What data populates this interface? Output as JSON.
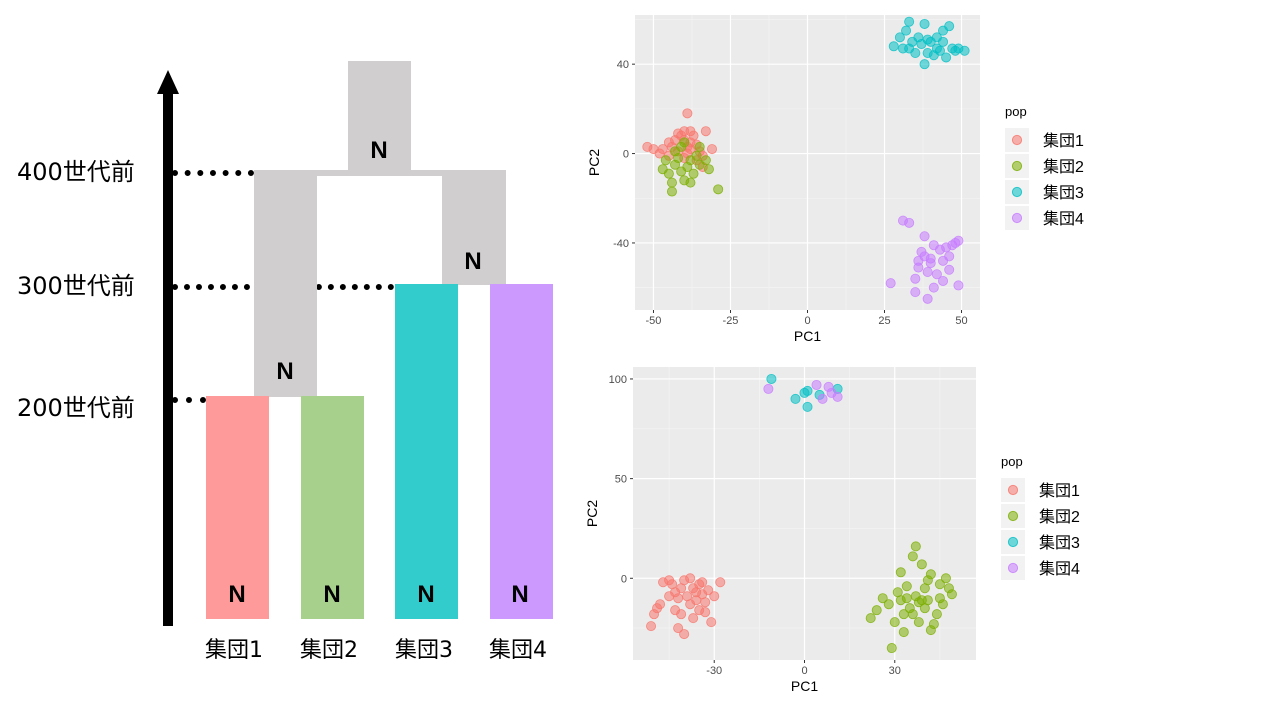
{
  "tree": {
    "generations": [
      "400世代前",
      "300世代前",
      "200世代前"
    ],
    "populations": [
      "集団1",
      "集団2",
      "集団3",
      "集団4"
    ],
    "node_label": "N",
    "colors": {
      "pop1": "#fe9a9a",
      "pop2": "#a8d08d",
      "pop3": "#33cccc",
      "pop4": "#cc99ff",
      "ancestor": "#d0cece"
    }
  },
  "chart_data": [
    {
      "type": "scatter",
      "xlabel": "PC1",
      "ylabel": "PC2",
      "xticks": [
        -50,
        -25,
        0,
        25,
        50
      ],
      "yticks": [
        40,
        0,
        -40
      ],
      "xlim": [
        -56,
        56
      ],
      "ylim": [
        -70,
        62
      ],
      "legend_title": "pop",
      "legend_position": "right",
      "series": [
        {
          "name": "集団1",
          "color": "#f8766d",
          "points": [
            [
              -52,
              3
            ],
            [
              -50,
              2
            ],
            [
              -47,
              2
            ],
            [
              -45,
              5
            ],
            [
              -44,
              3
            ],
            [
              -43,
              6
            ],
            [
              -42,
              9
            ],
            [
              -41,
              8
            ],
            [
              -40,
              10
            ],
            [
              -40,
              6
            ],
            [
              -39,
              3
            ],
            [
              -39,
              0
            ],
            [
              -38,
              2
            ],
            [
              -38,
              5
            ],
            [
              -37,
              8
            ],
            [
              -36,
              4
            ],
            [
              -35,
              1
            ],
            [
              -34,
              -1
            ],
            [
              -33,
              10
            ],
            [
              -31,
              2
            ],
            [
              -39,
              18
            ],
            [
              -40,
              -2
            ],
            [
              -36,
              -3
            ],
            [
              -34,
              -6
            ],
            [
              -42,
              1
            ],
            [
              -45,
              -1
            ],
            [
              -48,
              0
            ],
            [
              -38,
              10
            ]
          ]
        },
        {
          "name": "集団2",
          "color": "#7cae00",
          "points": [
            [
              -47,
              -7
            ],
            [
              -46,
              -3
            ],
            [
              -45,
              -9
            ],
            [
              -44,
              -13
            ],
            [
              -44,
              -17
            ],
            [
              -43,
              -5
            ],
            [
              -42,
              -2
            ],
            [
              -41,
              -8
            ],
            [
              -40,
              -12
            ],
            [
              -39,
              -6
            ],
            [
              -38,
              -13
            ],
            [
              -37,
              -9
            ],
            [
              -36,
              -1
            ],
            [
              -35,
              3
            ],
            [
              -35,
              -5
            ],
            [
              -33,
              -3
            ],
            [
              -32,
              -7
            ],
            [
              -29,
              -16
            ],
            [
              -43,
              1
            ],
            [
              -40,
              5
            ],
            [
              -38,
              -3
            ],
            [
              -41,
              3
            ]
          ]
        },
        {
          "name": "集団3",
          "color": "#00bfc4",
          "points": [
            [
              28,
              48
            ],
            [
              30,
              52
            ],
            [
              31,
              47
            ],
            [
              32,
              55
            ],
            [
              33,
              59
            ],
            [
              34,
              50
            ],
            [
              35,
              45
            ],
            [
              36,
              52
            ],
            [
              37,
              49
            ],
            [
              38,
              58
            ],
            [
              38,
              40
            ],
            [
              39,
              45
            ],
            [
              40,
              50
            ],
            [
              41,
              44
            ],
            [
              42,
              47
            ],
            [
              43,
              46
            ],
            [
              44,
              55
            ],
            [
              44,
              50
            ],
            [
              45,
              43
            ],
            [
              46,
              57
            ],
            [
              47,
              47
            ],
            [
              48,
              46
            ],
            [
              49,
              47
            ],
            [
              51,
              46
            ],
            [
              39,
              51
            ],
            [
              33,
              47
            ],
            [
              42,
              52
            ]
          ]
        },
        {
          "name": "集団4",
          "color": "#c77cff",
          "points": [
            [
              27,
              -58
            ],
            [
              31,
              -30
            ],
            [
              33,
              -31
            ],
            [
              35,
              -56
            ],
            [
              35,
              -62
            ],
            [
              36,
              -51
            ],
            [
              37,
              -44
            ],
            [
              38,
              -46
            ],
            [
              38,
              -37
            ],
            [
              39,
              -53
            ],
            [
              39,
              -65
            ],
            [
              40,
              -47
            ],
            [
              41,
              -41
            ],
            [
              41,
              -60
            ],
            [
              42,
              -54
            ],
            [
              43,
              -43
            ],
            [
              44,
              -48
            ],
            [
              44,
              -57
            ],
            [
              45,
              -42
            ],
            [
              46,
              -46
            ],
            [
              46,
              -52
            ],
            [
              47,
              -41
            ],
            [
              48,
              -40
            ],
            [
              49,
              -39
            ],
            [
              49,
              -59
            ],
            [
              40,
              -49
            ],
            [
              36,
              -48
            ]
          ]
        }
      ]
    },
    {
      "type": "scatter",
      "xlabel": "PC1",
      "ylabel": "PC2",
      "xticks": [
        -30,
        0,
        30
      ],
      "yticks": [
        100,
        50,
        0
      ],
      "xlim": [
        -57,
        57
      ],
      "ylim": [
        -41,
        106
      ],
      "legend_title": "pop",
      "legend_position": "right",
      "series": [
        {
          "name": "集団1",
          "color": "#f8766d",
          "points": [
            [
              -51,
              -24
            ],
            [
              -50,
              -18
            ],
            [
              -49,
              -15
            ],
            [
              -48,
              -13
            ],
            [
              -47,
              -2
            ],
            [
              -45,
              -1
            ],
            [
              -44,
              -3
            ],
            [
              -43,
              -7
            ],
            [
              -43,
              -16
            ],
            [
              -42,
              -10
            ],
            [
              -42,
              -25
            ],
            [
              -41,
              -5
            ],
            [
              -41,
              -18
            ],
            [
              -40,
              -28
            ],
            [
              -40,
              -1
            ],
            [
              -39,
              -9
            ],
            [
              -38,
              -13
            ],
            [
              -38,
              0
            ],
            [
              -37,
              -5
            ],
            [
              -37,
              -20
            ],
            [
              -36,
              -11
            ],
            [
              -35,
              -3
            ],
            [
              -35,
              -16
            ],
            [
              -34,
              -8
            ],
            [
              -34,
              -2
            ],
            [
              -33,
              -12
            ],
            [
              -32,
              -6
            ],
            [
              -31,
              -22
            ],
            [
              -30,
              -9
            ],
            [
              -28,
              -2
            ],
            [
              -45,
              -9
            ],
            [
              -36,
              -7
            ],
            [
              -33,
              -17
            ]
          ]
        },
        {
          "name": "集団2",
          "color": "#7cae00",
          "points": [
            [
              22,
              -20
            ],
            [
              24,
              -16
            ],
            [
              26,
              -10
            ],
            [
              28,
              -13
            ],
            [
              29,
              -35
            ],
            [
              30,
              -22
            ],
            [
              31,
              -7
            ],
            [
              32,
              -11
            ],
            [
              32,
              3
            ],
            [
              33,
              -27
            ],
            [
              34,
              -10
            ],
            [
              34,
              -4
            ],
            [
              35,
              -15
            ],
            [
              36,
              -18
            ],
            [
              36,
              11
            ],
            [
              37,
              -9
            ],
            [
              37,
              16
            ],
            [
              38,
              -12
            ],
            [
              38,
              -22
            ],
            [
              39,
              -11
            ],
            [
              40,
              -15
            ],
            [
              40,
              -5
            ],
            [
              41,
              -1
            ],
            [
              41,
              -11
            ],
            [
              42,
              2
            ],
            [
              42,
              -26
            ],
            [
              43,
              -23
            ],
            [
              44,
              -18
            ],
            [
              45,
              -3
            ],
            [
              46,
              -13
            ],
            [
              47,
              0
            ],
            [
              48,
              -5
            ],
            [
              49,
              -8
            ],
            [
              39,
              7
            ],
            [
              33,
              -18
            ],
            [
              45,
              -10
            ]
          ]
        },
        {
          "name": "集団3",
          "color": "#00bfc4",
          "points": [
            [
              -11,
              100
            ],
            [
              -3,
              90
            ],
            [
              1,
              94
            ],
            [
              1,
              86
            ],
            [
              5,
              92
            ],
            [
              11,
              95
            ],
            [
              0,
              93
            ]
          ]
        },
        {
          "name": "集団4",
          "color": "#c77cff",
          "points": [
            [
              -12,
              95
            ],
            [
              4,
              97
            ],
            [
              8,
              96
            ],
            [
              9,
              93
            ],
            [
              11,
              91
            ],
            [
              6,
              90
            ]
          ]
        }
      ]
    }
  ]
}
